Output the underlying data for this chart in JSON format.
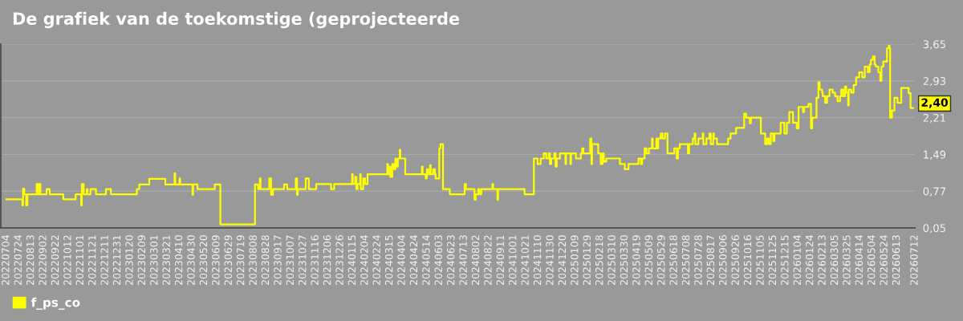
{
  "chart_data": {
    "type": "step",
    "title": "De grafiek van de toekomstige (geprojecteerde",
    "x": [
      "2022-07-04",
      "2022-07-30",
      "2022-07-31",
      "2022-08-02",
      "2022-08-05",
      "2022-08-07",
      "2022-08-22",
      "2022-08-24",
      "2022-08-26",
      "2022-08-28",
      "2022-09-07",
      "2022-09-12",
      "2022-10-04",
      "2022-10-24",
      "2022-11-02",
      "2022-11-03",
      "2022-11-06",
      "2022-11-11",
      "2022-11-12",
      "2022-11-17",
      "2022-11-26",
      "2022-12-12",
      "2022-12-20",
      "2023-01-31",
      "2023-02-04",
      "2023-02-20",
      "2023-03-18",
      "2023-04-02",
      "2023-04-03",
      "2023-04-10",
      "2023-04-11",
      "2023-05-01",
      "2023-05-02",
      "2023-05-09",
      "2023-06-06",
      "2023-06-15",
      "2023-08-10",
      "2023-08-15",
      "2023-08-18",
      "2023-08-19",
      "2023-09-02",
      "2023-09-05",
      "2023-09-08",
      "2023-09-26",
      "2023-10-01",
      "2023-10-15",
      "2023-10-17",
      "2023-10-18",
      "2023-10-31",
      "2023-11-05",
      "2023-11-17",
      "2023-12-11",
      "2023-12-16",
      "2024-01-14",
      "2024-01-15",
      "2024-01-19",
      "2024-01-21",
      "2024-01-23",
      "2024-01-27",
      "2024-01-28",
      "2024-02-01",
      "2024-02-04",
      "2024-02-08",
      "2024-03-11",
      "2024-03-12",
      "2024-03-15",
      "2024-03-16",
      "2024-03-19",
      "2024-03-22",
      "2024-03-24",
      "2024-03-25",
      "2024-03-28",
      "2024-03-31",
      "2024-04-01",
      "2024-04-09",
      "2024-05-06",
      "2024-05-07",
      "2024-05-12",
      "2024-05-14",
      "2024-05-16",
      "2024-05-19",
      "2024-05-20",
      "2024-05-24",
      "2024-05-27",
      "2024-05-28",
      "2024-06-03",
      "2024-06-05",
      "2024-06-09",
      "2024-06-20",
      "2024-07-14",
      "2024-07-16",
      "2024-07-30",
      "2024-08-01",
      "2024-08-05",
      "2024-08-07",
      "2024-08-10",
      "2024-08-28",
      "2024-08-29",
      "2024-09-05",
      "2024-09-06",
      "2024-10-19",
      "2024-11-03",
      "2024-11-09",
      "2024-11-14",
      "2024-11-19",
      "2024-11-23",
      "2024-11-27",
      "2024-11-29",
      "2024-12-01",
      "2024-12-06",
      "2024-12-08",
      "2024-12-10",
      "2024-12-15",
      "2024-12-24",
      "2024-12-25",
      "2025-01-01",
      "2025-01-02",
      "2025-01-10",
      "2025-01-18",
      "2025-01-20",
      "2025-01-22",
      "2025-02-02",
      "2025-02-04",
      "2025-02-05",
      "2025-02-15",
      "2025-02-19",
      "2025-02-22",
      "2025-02-24",
      "2025-02-28",
      "2025-03-22",
      "2025-03-30",
      "2025-04-05",
      "2025-04-21",
      "2025-04-25",
      "2025-04-27",
      "2025-05-01",
      "2025-05-04",
      "2025-05-08",
      "2025-05-13",
      "2025-05-14",
      "2025-05-20",
      "2025-05-21",
      "2025-05-23",
      "2025-05-27",
      "2025-05-30",
      "2025-06-03",
      "2025-06-07",
      "2025-06-18",
      "2025-06-22",
      "2025-06-24",
      "2025-06-27",
      "2025-07-10",
      "2025-07-12",
      "2025-07-18",
      "2025-07-21",
      "2025-07-22",
      "2025-07-27",
      "2025-08-03",
      "2025-08-04",
      "2025-08-09",
      "2025-08-14",
      "2025-08-16",
      "2025-08-20",
      "2025-08-21",
      "2025-08-26",
      "2025-09-13",
      "2025-09-17",
      "2025-09-26",
      "2025-10-09",
      "2025-10-12",
      "2025-10-18",
      "2025-10-20",
      "2025-11-05",
      "2025-11-12",
      "2025-11-15",
      "2025-11-18",
      "2025-11-21",
      "2025-11-25",
      "2025-11-27",
      "2025-12-07",
      "2025-12-13",
      "2025-12-17",
      "2025-12-21",
      "2025-12-27",
      "2026-01-02",
      "2026-01-05",
      "2026-01-12",
      "2026-01-14",
      "2026-01-21",
      "2026-01-25",
      "2026-01-27",
      "2026-02-03",
      "2026-02-06",
      "2026-02-08",
      "2026-02-12",
      "2026-02-13",
      "2026-02-17",
      "2026-02-20",
      "2026-02-24",
      "2026-03-01",
      "2026-03-05",
      "2026-03-09",
      "2026-03-13",
      "2026-03-15",
      "2026-03-18",
      "2026-03-21",
      "2026-03-23",
      "2026-03-26",
      "2026-03-27",
      "2026-03-31",
      "2026-04-04",
      "2026-04-08",
      "2026-04-13",
      "2026-04-18",
      "2026-04-22",
      "2026-04-27",
      "2026-04-30",
      "2026-05-02",
      "2026-05-05",
      "2026-05-08",
      "2026-05-10",
      "2026-05-14",
      "2026-05-17",
      "2026-05-19",
      "2026-05-22",
      "2026-05-28",
      "2026-05-31",
      "2026-06-01",
      "2026-06-02",
      "2026-06-05",
      "2026-06-09",
      "2026-06-14",
      "2026-06-20",
      "2026-07-02",
      "2026-07-05",
      "2026-07-09"
    ],
    "series": [
      {
        "name": "f_ps_co",
        "color": "#ffff00",
        "values": [
          0.61,
          0.49,
          0.82,
          0.71,
          0.49,
          0.71,
          0.91,
          0.71,
          0.91,
          0.71,
          0.81,
          0.71,
          0.61,
          0.71,
          0.49,
          0.91,
          0.71,
          0.81,
          0.71,
          0.81,
          0.71,
          0.81,
          0.71,
          0.81,
          0.9,
          1.01,
          0.9,
          1.12,
          0.9,
          1.02,
          0.9,
          0.7,
          0.9,
          0.81,
          0.9,
          0.12,
          0.9,
          0.81,
          1.02,
          0.81,
          1.02,
          0.7,
          0.81,
          0.9,
          0.81,
          1.02,
          0.7,
          0.81,
          1.02,
          0.81,
          0.91,
          0.81,
          0.91,
          1.1,
          0.91,
          1.05,
          0.81,
          0.91,
          1.1,
          0.81,
          1.02,
          0.91,
          1.1,
          1.3,
          1.1,
          1.25,
          1.05,
          1.3,
          1.2,
          1.41,
          1.25,
          1.41,
          1.58,
          1.41,
          1.1,
          1.25,
          1.1,
          1.02,
          1.2,
          1.1,
          1.28,
          1.1,
          1.2,
          1.1,
          1.02,
          1.61,
          1.69,
          0.81,
          0.71,
          0.91,
          0.81,
          0.6,
          0.71,
          0.81,
          0.71,
          0.81,
          0.91,
          0.81,
          0.6,
          0.81,
          0.71,
          1.41,
          1.3,
          1.41,
          1.51,
          1.41,
          1.51,
          1.3,
          1.41,
          1.51,
          1.25,
          1.41,
          1.51,
          1.3,
          1.51,
          1.3,
          1.51,
          1.41,
          1.51,
          1.61,
          1.51,
          1.8,
          1.3,
          1.69,
          1.51,
          1.3,
          1.51,
          1.35,
          1.41,
          1.3,
          1.2,
          1.3,
          1.41,
          1.3,
          1.41,
          1.61,
          1.51,
          1.61,
          1.8,
          1.61,
          1.8,
          1.61,
          1.8,
          1.9,
          1.8,
          1.9,
          1.51,
          1.61,
          1.41,
          1.61,
          1.69,
          1.51,
          1.69,
          1.8,
          1.9,
          1.69,
          1.8,
          1.9,
          1.69,
          1.8,
          1.9,
          1.69,
          1.9,
          1.8,
          1.69,
          1.8,
          1.9,
          2.01,
          2.29,
          2.21,
          2.1,
          2.21,
          1.9,
          1.69,
          1.8,
          1.69,
          1.9,
          1.75,
          1.9,
          2.11,
          1.9,
          2.11,
          2.32,
          2.11,
          2.0,
          2.42,
          2.32,
          2.42,
          2.48,
          2.0,
          2.21,
          2.6,
          2.9,
          2.76,
          2.7,
          2.63,
          2.5,
          2.63,
          2.76,
          2.7,
          2.63,
          2.53,
          2.63,
          2.76,
          2.63,
          2.82,
          2.7,
          2.45,
          2.76,
          2.7,
          2.85,
          3.0,
          3.1,
          3.0,
          3.21,
          3.1,
          3.25,
          3.34,
          3.41,
          3.25,
          3.21,
          3.1,
          2.93,
          3.21,
          3.31,
          3.57,
          3.62,
          3.57,
          2.21,
          2.35,
          2.6,
          2.5,
          2.79,
          2.69,
          2.4,
          2.4
        ]
      }
    ],
    "xlim": [
      "2022-06-25",
      "2026-07-12"
    ],
    "xticks": [
      {
        "value": "2022-07-04",
        "label": "20220704"
      },
      {
        "value": "2022-07-24",
        "label": "20220724"
      },
      {
        "value": "2022-08-13",
        "label": "20220813"
      },
      {
        "value": "2022-09-02",
        "label": "20220902"
      },
      {
        "value": "2022-09-22",
        "label": "20220922"
      },
      {
        "value": "2022-10-12",
        "label": "20221012"
      },
      {
        "value": "2022-11-01",
        "label": "20221101"
      },
      {
        "value": "2022-11-21",
        "label": "20221121"
      },
      {
        "value": "2022-12-11",
        "label": "20221211"
      },
      {
        "value": "2022-12-31",
        "label": "20221231"
      },
      {
        "value": "2023-01-20",
        "label": "20230120"
      },
      {
        "value": "2023-02-09",
        "label": "20230209"
      },
      {
        "value": "2023-03-01",
        "label": "20230301"
      },
      {
        "value": "2023-03-21",
        "label": "20230321"
      },
      {
        "value": "2023-04-10",
        "label": "20230410"
      },
      {
        "value": "2023-04-30",
        "label": "20230430"
      },
      {
        "value": "2023-05-20",
        "label": "20230520"
      },
      {
        "value": "2023-06-09",
        "label": "20230609"
      },
      {
        "value": "2023-06-29",
        "label": "20230629"
      },
      {
        "value": "2023-07-19",
        "label": "20230719"
      },
      {
        "value": "2023-08-08",
        "label": "20230808"
      },
      {
        "value": "2023-08-28",
        "label": "20230828"
      },
      {
        "value": "2023-09-17",
        "label": "20230917"
      },
      {
        "value": "2023-10-07",
        "label": "20231007"
      },
      {
        "value": "2023-10-27",
        "label": "20231027"
      },
      {
        "value": "2023-11-16",
        "label": "20231116"
      },
      {
        "value": "2023-12-06",
        "label": "20231206"
      },
      {
        "value": "2023-12-26",
        "label": "20231226"
      },
      {
        "value": "2024-01-15",
        "label": "20240115"
      },
      {
        "value": "2024-02-04",
        "label": "20240204"
      },
      {
        "value": "2024-02-24",
        "label": "20240224"
      },
      {
        "value": "2024-03-15",
        "label": "20240315"
      },
      {
        "value": "2024-04-04",
        "label": "20240404"
      },
      {
        "value": "2024-04-24",
        "label": "20240424"
      },
      {
        "value": "2024-05-14",
        "label": "20240514"
      },
      {
        "value": "2024-06-03",
        "label": "20240603"
      },
      {
        "value": "2024-06-23",
        "label": "20240623"
      },
      {
        "value": "2024-07-13",
        "label": "20240713"
      },
      {
        "value": "2024-08-02",
        "label": "20240802"
      },
      {
        "value": "2024-08-22",
        "label": "20240822"
      },
      {
        "value": "2024-09-11",
        "label": "20240911"
      },
      {
        "value": "2024-10-01",
        "label": "20241001"
      },
      {
        "value": "2024-10-21",
        "label": "20241021"
      },
      {
        "value": "2024-11-10",
        "label": "20241110"
      },
      {
        "value": "2024-11-30",
        "label": "20241130"
      },
      {
        "value": "2024-12-20",
        "label": "20241220"
      },
      {
        "value": "2025-01-09",
        "label": "20250109"
      },
      {
        "value": "2025-01-29",
        "label": "20250129"
      },
      {
        "value": "2025-02-18",
        "label": "20250218"
      },
      {
        "value": "2025-03-10",
        "label": "20250310"
      },
      {
        "value": "2025-03-30",
        "label": "20250330"
      },
      {
        "value": "2025-04-19",
        "label": "20250419"
      },
      {
        "value": "2025-05-09",
        "label": "20250509"
      },
      {
        "value": "2025-05-29",
        "label": "20250529"
      },
      {
        "value": "2025-06-18",
        "label": "20250618"
      },
      {
        "value": "2025-07-08",
        "label": "20250708"
      },
      {
        "value": "2025-07-28",
        "label": "20250728"
      },
      {
        "value": "2025-08-17",
        "label": "20250817"
      },
      {
        "value": "2025-09-06",
        "label": "20250906"
      },
      {
        "value": "2025-09-26",
        "label": "20250926"
      },
      {
        "value": "2025-10-16",
        "label": "20251016"
      },
      {
        "value": "2025-11-05",
        "label": "20251105"
      },
      {
        "value": "2025-11-25",
        "label": "20251125"
      },
      {
        "value": "2025-12-15",
        "label": "20251215"
      },
      {
        "value": "2026-01-04",
        "label": "20260104"
      },
      {
        "value": "2026-01-24",
        "label": "20260124"
      },
      {
        "value": "2026-02-13",
        "label": "20260213"
      },
      {
        "value": "2026-03-05",
        "label": "20260305"
      },
      {
        "value": "2026-03-25",
        "label": "20260325"
      },
      {
        "value": "2026-04-14",
        "label": "20260414"
      },
      {
        "value": "2026-05-04",
        "label": "20260504"
      },
      {
        "value": "2026-05-24",
        "label": "20260524"
      },
      {
        "value": "2026-06-13",
        "label": "20260613"
      },
      {
        "value": "2026-07-12",
        "label": "20260712"
      }
    ],
    "ylim": [
      0.05,
      3.65
    ],
    "yticks": [
      {
        "value": 0.05,
        "label": "0,05"
      },
      {
        "value": 0.77,
        "label": "0,77"
      },
      {
        "value": 1.49,
        "label": "1,49"
      },
      {
        "value": 2.21,
        "label": "2,21"
      },
      {
        "value": 2.93,
        "label": "2,93"
      },
      {
        "value": 3.65,
        "label": "3,65"
      }
    ],
    "grid": "y",
    "legend": "bottom left",
    "annotations": [
      {
        "text": "2,40",
        "x": "2026-07-09",
        "y": 2.4
      }
    ]
  }
}
